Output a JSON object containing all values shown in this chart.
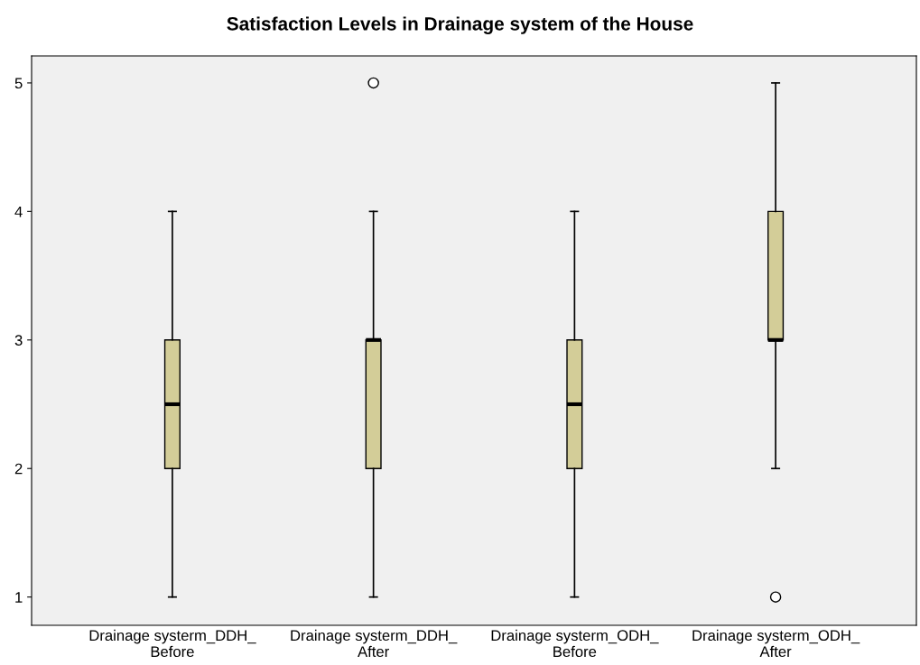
{
  "chart_data": {
    "type": "box",
    "title": "Satisfaction Levels in Drainage system of the House",
    "categories": [
      "Drainage systerm_DDH_\nBefore",
      "Drainage systerm_DDH_\nAfter",
      "Drainage systerm_ODH_\nBefore",
      "Drainage systerm_ODH_\nAfter"
    ],
    "boxes": [
      {
        "low": 1,
        "q1": 2,
        "median": 2.5,
        "q3": 3,
        "high": 4
      },
      {
        "low": 1,
        "q1": 2,
        "median": 3,
        "q3": 3,
        "high": 4,
        "outliers": [
          5
        ]
      },
      {
        "low": 1,
        "q1": 2,
        "median": 2.5,
        "q3": 3,
        "high": 4
      },
      {
        "low": 2,
        "q1": 3,
        "median": 3,
        "q3": 4,
        "high": 5,
        "outliers": [
          1
        ]
      }
    ],
    "color": "#d3cd98",
    "ylim": [
      0.78,
      5.21
    ],
    "yticks": [
      1,
      2,
      3,
      4,
      5
    ],
    "grid": false,
    "legend": false
  }
}
